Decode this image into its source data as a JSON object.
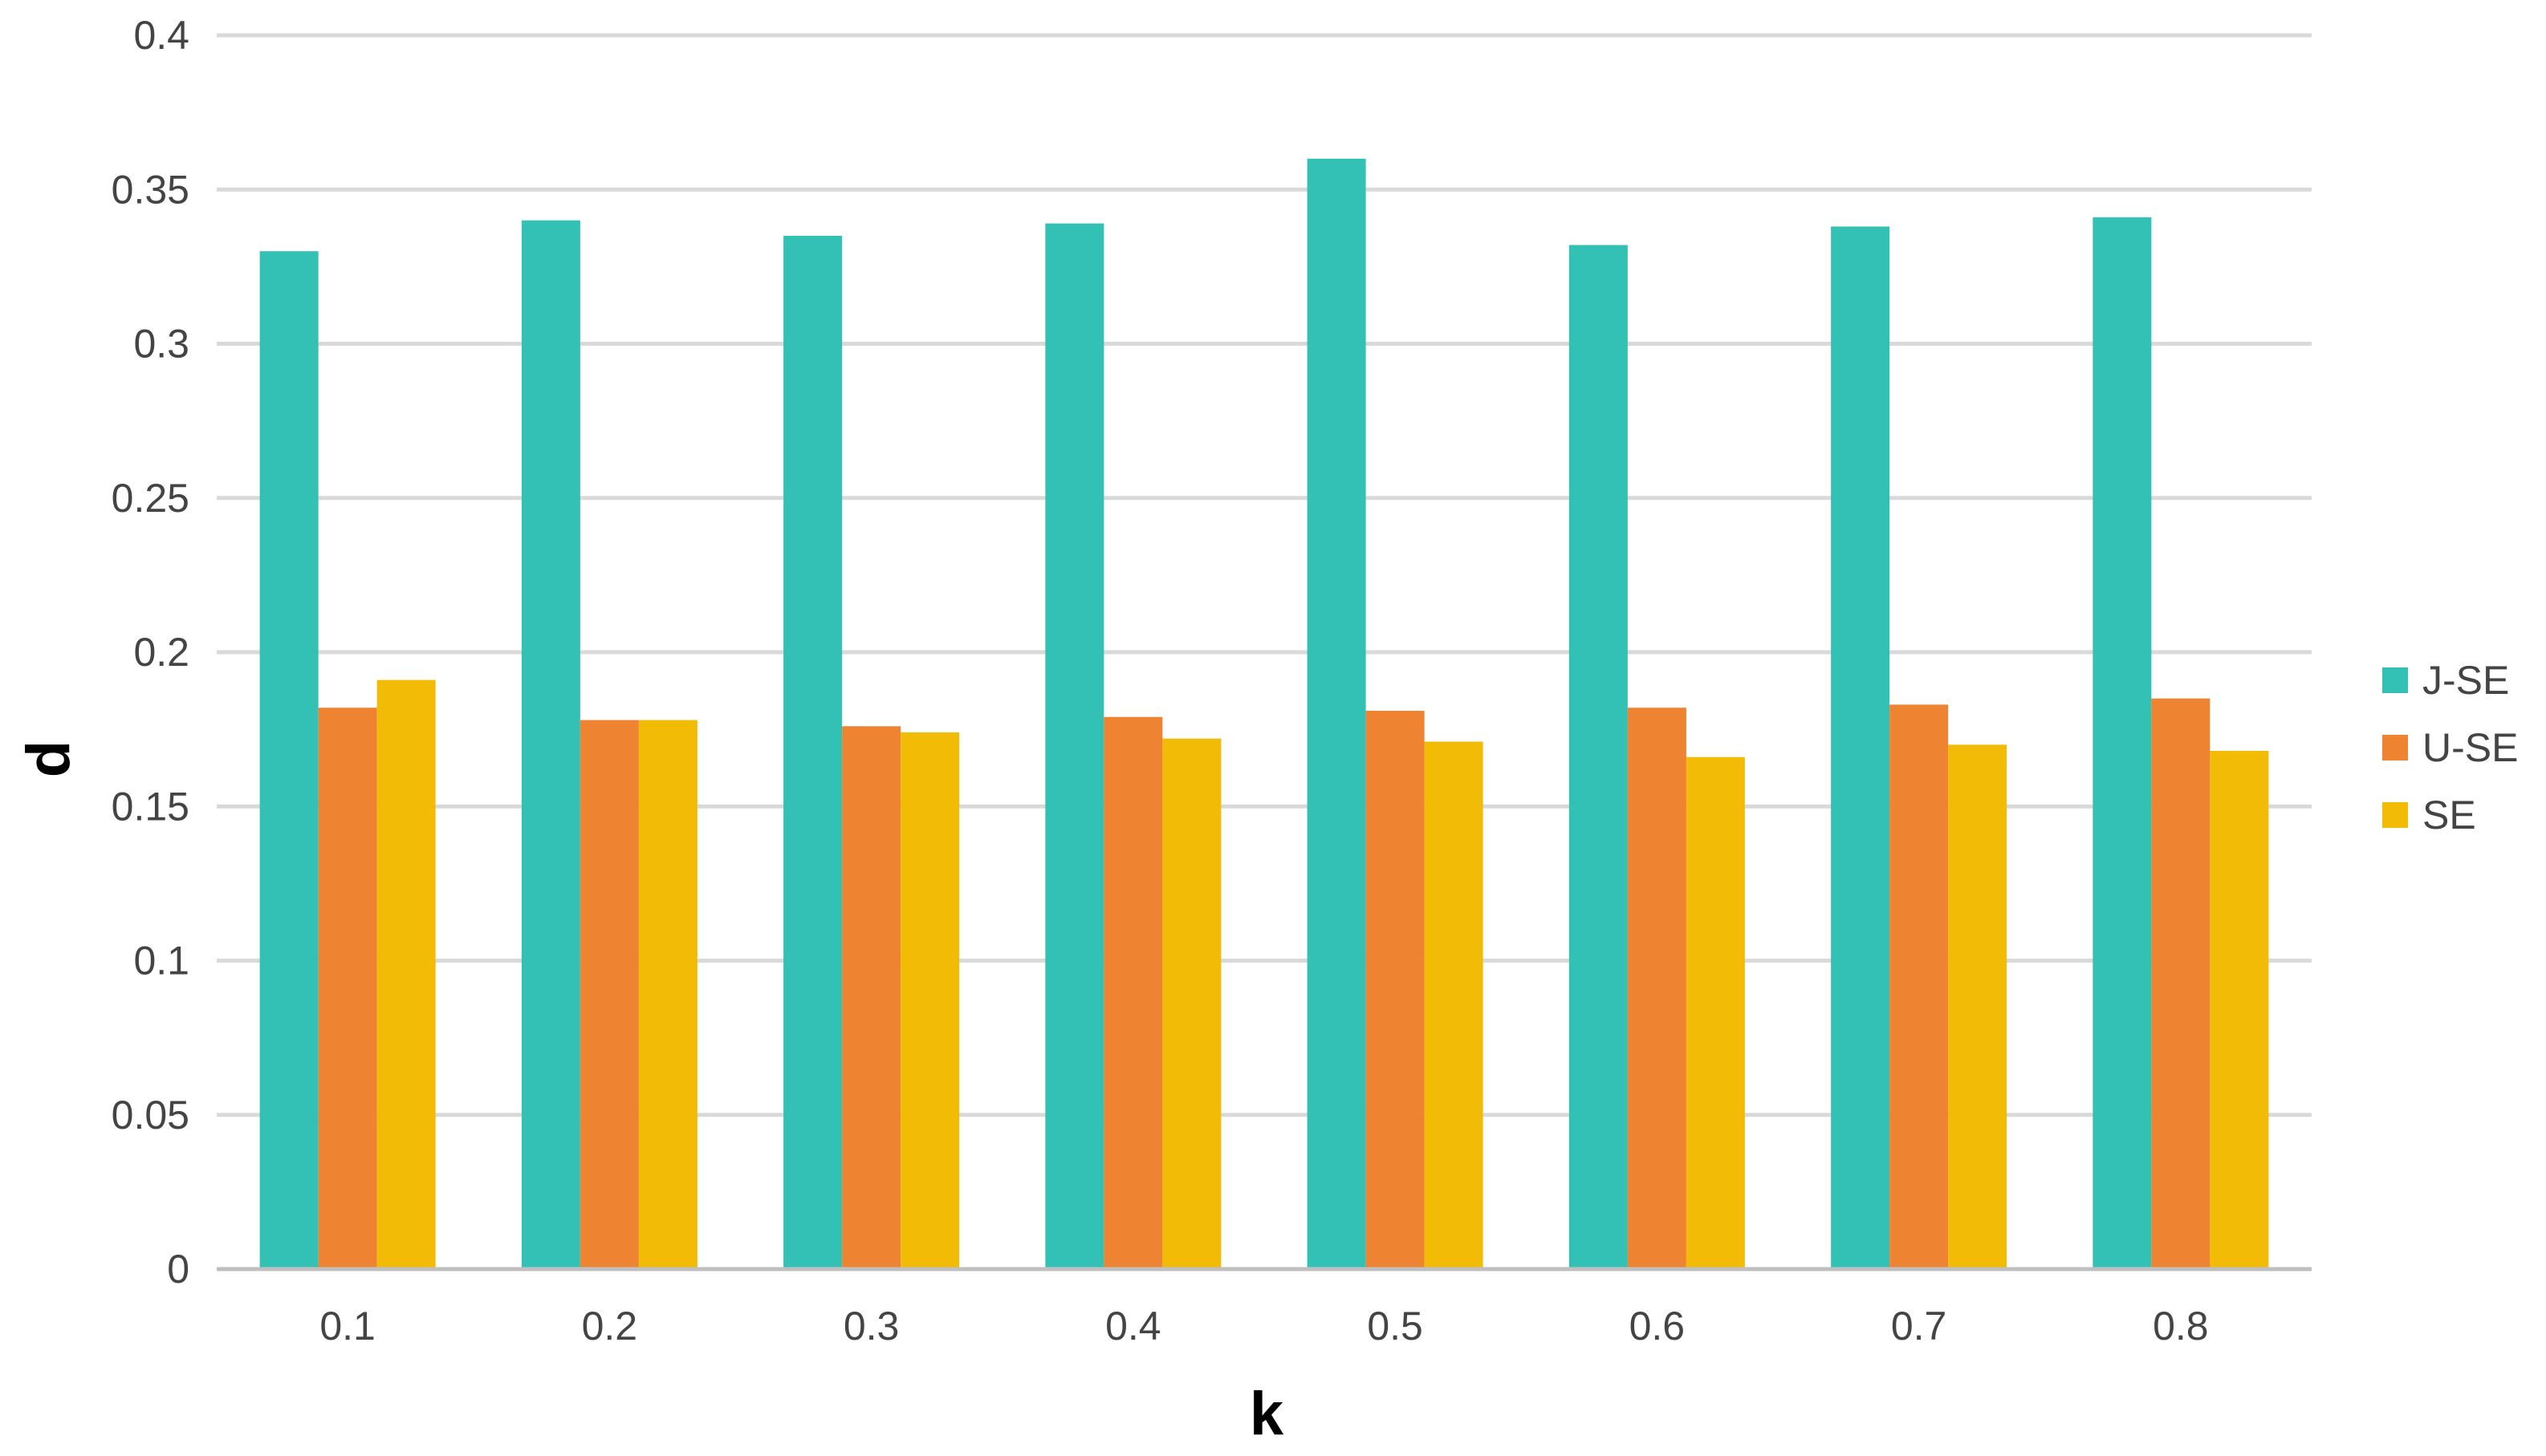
{
  "chart_data": {
    "type": "bar",
    "categories": [
      "0.1",
      "0.2",
      "0.3",
      "0.4",
      "0.5",
      "0.6",
      "0.7",
      "0.8"
    ],
    "series": [
      {
        "name": "J-SE",
        "color": "#32c1b4",
        "values": [
          0.33,
          0.34,
          0.335,
          0.339,
          0.36,
          0.332,
          0.338,
          0.341
        ]
      },
      {
        "name": "U-SE",
        "color": "#ee8332",
        "values": [
          0.182,
          0.178,
          0.176,
          0.179,
          0.181,
          0.182,
          0.183,
          0.185
        ]
      },
      {
        "name": "SE",
        "color": "#f2bb05",
        "values": [
          0.191,
          0.178,
          0.174,
          0.172,
          0.171,
          0.166,
          0.17,
          0.168
        ]
      }
    ],
    "xlabel": "k",
    "ylabel": "d",
    "ylim": [
      0,
      0.4
    ],
    "yticks": [
      "0",
      "0.05",
      "0.1",
      "0.15",
      "0.2",
      "0.25",
      "0.3",
      "0.35",
      "0.4"
    ],
    "grid": true,
    "legend_position": "right"
  }
}
